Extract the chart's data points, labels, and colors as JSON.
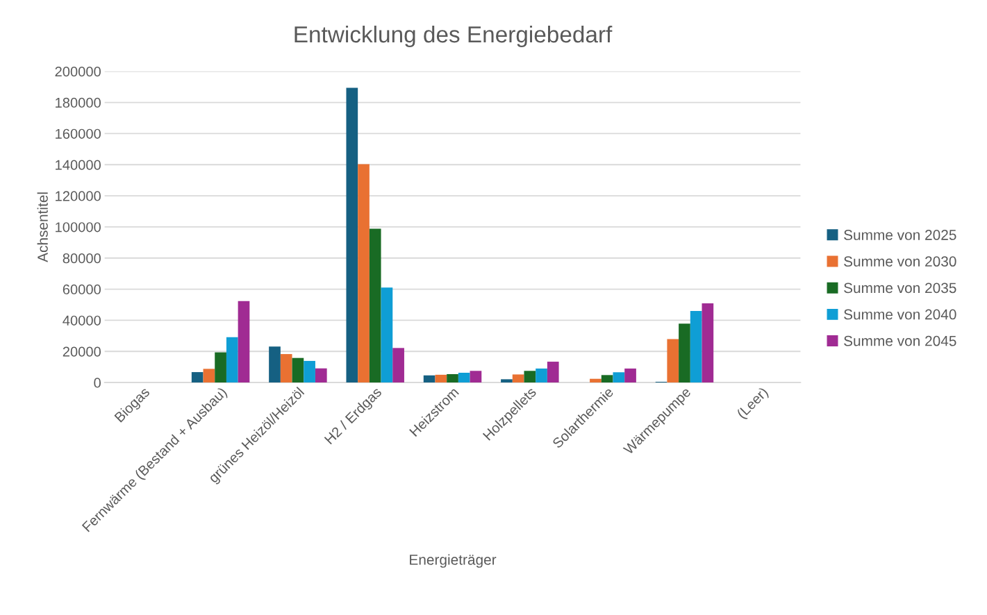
{
  "chart_data": {
    "type": "bar",
    "title": "Entwicklung des Energiebedarf",
    "xlabel": "Energieträger",
    "ylabel": "Achsentitel",
    "categories": [
      "Biogas",
      "Fernwärme (Bestand + Ausbau)",
      "grünes Heizöl/Heizöl",
      "H2 / Erdgas",
      "Heizstrom",
      "Holzpellets",
      "Solarthermie",
      "Wärmepumpe",
      "(Leer)"
    ],
    "series": [
      {
        "name": "Summe von 2025",
        "color": "#156082",
        "values": [
          null,
          6700,
          23100,
          189400,
          4600,
          2100,
          null,
          500,
          null
        ]
      },
      {
        "name": "Summe von 2030",
        "color": "#e97132",
        "values": [
          null,
          8800,
          18300,
          140300,
          5000,
          5200,
          2400,
          27900,
          null
        ]
      },
      {
        "name": "Summe von 2035",
        "color": "#196b24",
        "values": [
          null,
          19400,
          15800,
          98800,
          5400,
          7500,
          4800,
          37900,
          null
        ]
      },
      {
        "name": "Summe von 2040",
        "color": "#0f9ed5",
        "values": [
          null,
          29200,
          13900,
          61100,
          6300,
          9000,
          6600,
          46000,
          null
        ]
      },
      {
        "name": "Summe von 2045",
        "color": "#a02b93",
        "values": [
          null,
          52300,
          9100,
          22200,
          7500,
          13400,
          9000,
          50900,
          null
        ]
      }
    ],
    "ylim": [
      0,
      200000
    ],
    "yticks": [
      0,
      20000,
      40000,
      60000,
      80000,
      100000,
      120000,
      140000,
      160000,
      180000,
      200000
    ],
    "grid": "y",
    "legend": "right"
  }
}
